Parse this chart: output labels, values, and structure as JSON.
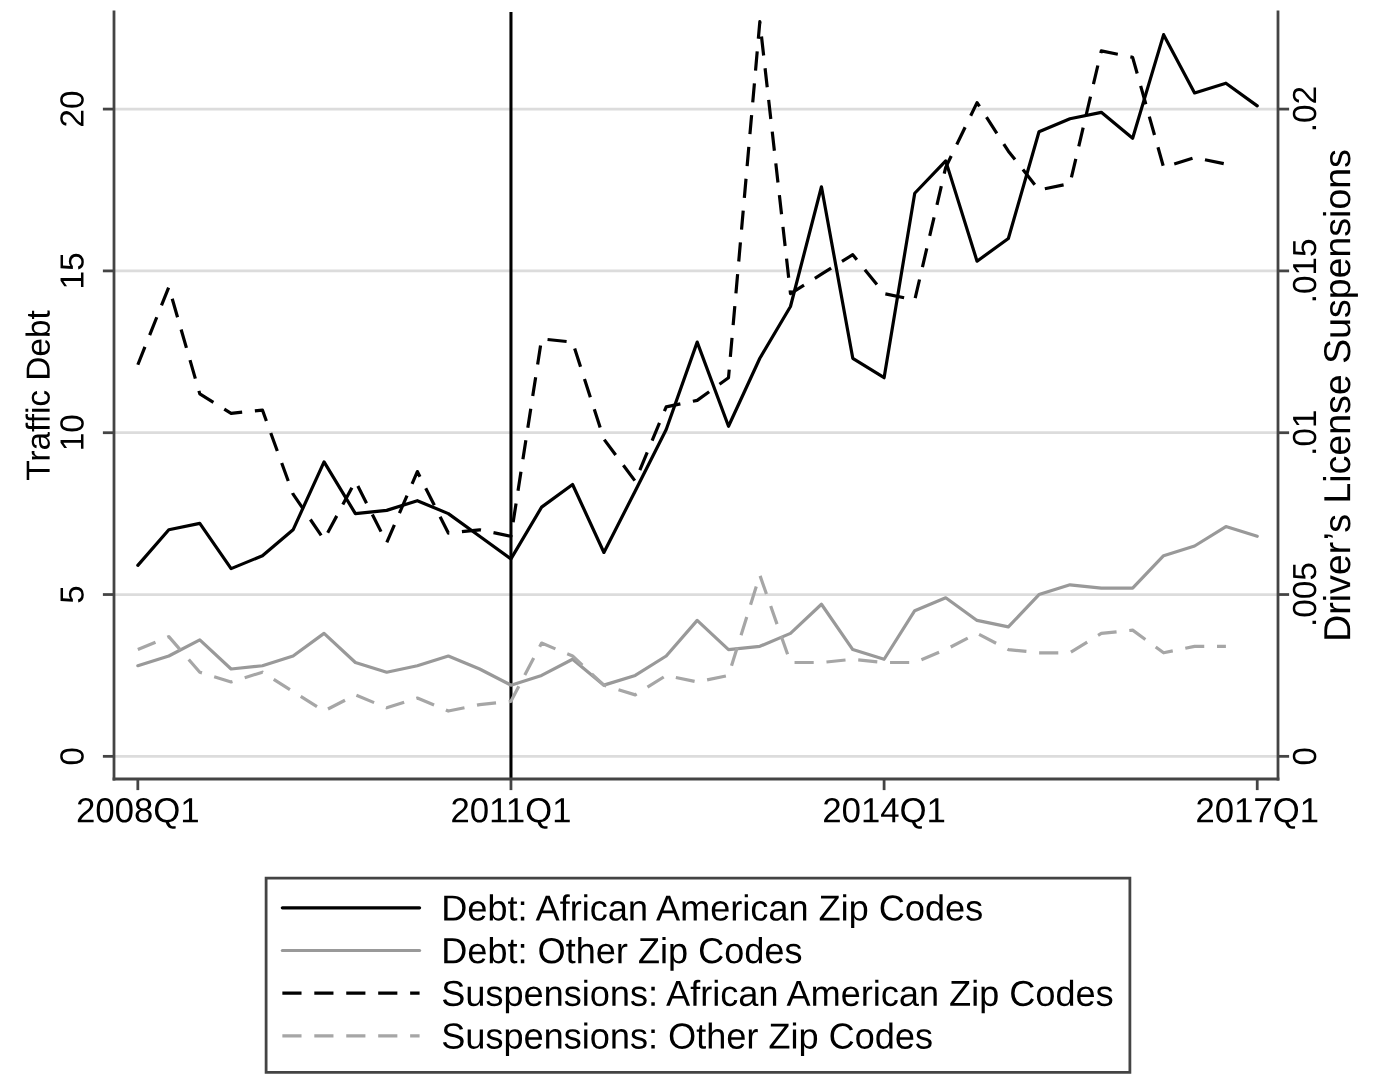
{
  "chart_data": {
    "type": "line",
    "ylabel": "Traffic Debt",
    "y2label": "Driver’s License Suspensions",
    "x": [
      "2008-01",
      "2008-04",
      "2008-07",
      "2008-10",
      "2009-01",
      "2009-04",
      "2009-07",
      "2009-10",
      "2010-01",
      "2010-04",
      "2010-07",
      "2010-10",
      "2011-01",
      "2011-04",
      "2011-07",
      "2011-10",
      "2012-01",
      "2012-04",
      "2012-07",
      "2012-10",
      "2013-01",
      "2013-04",
      "2013-07",
      "2013-10",
      "2014-01",
      "2014-04",
      "2014-07",
      "2014-10",
      "2015-01",
      "2015-04",
      "2015-07",
      "2015-10",
      "2016-01",
      "2016-04",
      "2016-07",
      "2016-10",
      "2017-01"
    ],
    "xlim": [
      "2007-10-23",
      "2017-03-03"
    ],
    "xticks": [
      {
        "value": "2008-01",
        "label": "2008Q1"
      },
      {
        "value": "2011-01",
        "label": "2011Q1"
      },
      {
        "value": "2014-01",
        "label": "2014Q1"
      },
      {
        "value": "2017-01",
        "label": "2017Q1"
      }
    ],
    "ylim": [
      -0.7,
      23
    ],
    "yticks": [
      0,
      5,
      10,
      15,
      20
    ],
    "y2lim": [
      -0.0007,
      0.023
    ],
    "y2ticks": [
      0,
      {
        "value": 0.005,
        "label": ".005"
      },
      {
        "value": 0.01,
        "label": ".01"
      },
      {
        "value": 0.015,
        "label": ".015"
      },
      {
        "value": 0.02,
        "label": ".02"
      }
    ],
    "grid": "y",
    "legend": "bottom",
    "ref_lines": [
      {
        "axis": "x",
        "value": "2011-01",
        "color": "#000000",
        "line_style": "solid"
      }
    ],
    "series": [
      {
        "name": "Debt: African American Zip Codes",
        "color": "#000000",
        "line_style": "solid",
        "values": [
          5.9,
          7.0,
          7.2,
          5.8,
          6.2,
          7.0,
          9.1,
          7.5,
          7.6,
          7.9,
          7.5,
          6.8,
          6.1,
          7.7,
          8.4,
          6.3,
          8.2,
          10.1,
          12.8,
          10.2,
          12.3,
          13.9,
          17.6,
          12.3,
          11.7,
          17.4,
          18.4,
          15.3,
          16.0,
          19.3,
          19.7,
          19.9,
          19.1,
          22.3,
          20.5,
          20.8,
          20.1
        ]
      },
      {
        "name": "Debt: Other Zip Codes",
        "color": "#999999",
        "line_style": "solid",
        "values": [
          2.8,
          3.1,
          3.6,
          2.7,
          2.8,
          3.1,
          3.8,
          2.9,
          2.6,
          2.8,
          3.1,
          2.7,
          2.2,
          2.5,
          3.0,
          2.2,
          2.5,
          3.1,
          4.2,
          3.3,
          3.4,
          3.8,
          4.7,
          3.3,
          3.0,
          4.5,
          4.9,
          4.2,
          4.0,
          5.0,
          5.3,
          5.2,
          5.2,
          6.2,
          6.5,
          7.1,
          6.8
        ]
      },
      {
        "name": "Suspensions: African American Zip Codes",
        "color": "#000000",
        "line_style": "dashed",
        "axis": "y2",
        "values": [
          0.0121,
          0.0145,
          0.0112,
          0.0106,
          0.0107,
          0.0081,
          0.0067,
          0.0085,
          0.0066,
          0.0088,
          0.0069,
          0.007,
          0.0068,
          0.0129,
          0.0128,
          0.0098,
          0.0085,
          0.0108,
          0.011,
          0.0117,
          0.0227,
          0.0143,
          0.0149,
          0.0155,
          0.0143,
          0.0141,
          0.0182,
          0.0202,
          0.0187,
          0.0175,
          0.0177,
          0.0218,
          0.0216,
          0.0182,
          0.0185,
          0.0183,
          null
        ]
      },
      {
        "name": "Suspensions: Other Zip Codes",
        "color": "#a6a6a6",
        "line_style": "dashed",
        "axis": "y2",
        "values": [
          0.0033,
          0.0037,
          0.0026,
          0.0023,
          0.0026,
          0.002,
          0.0014,
          0.0019,
          0.0015,
          0.0018,
          0.0014,
          0.0016,
          0.0017,
          0.0035,
          0.0031,
          0.0022,
          0.0019,
          0.0025,
          0.0023,
          0.0025,
          0.0056,
          0.0029,
          0.0029,
          0.003,
          0.0029,
          0.0029,
          0.0033,
          0.0038,
          0.0033,
          0.0032,
          0.0032,
          0.0038,
          0.0039,
          0.0032,
          0.0034,
          0.0034,
          null
        ]
      }
    ]
  }
}
